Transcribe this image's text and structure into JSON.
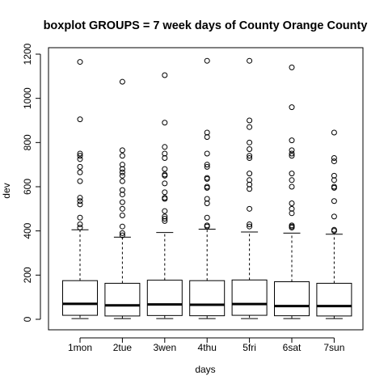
{
  "chart_data": {
    "type": "boxplot",
    "title": "boxplot GROUPS = 7 week days of County Orange County",
    "xlabel": "days",
    "ylabel": "dev",
    "ylim": [
      0,
      1200
    ],
    "yticks": [
      0,
      200,
      400,
      600,
      800,
      1000,
      1200
    ],
    "grid": false,
    "colors": {
      "box_fill": "#ffffff",
      "stroke": "#000000"
    },
    "categories": [
      "1mon",
      "2tue",
      "3wen",
      "4thu",
      "5fri",
      "6sat",
      "7sun"
    ],
    "boxes": [
      {
        "name": "1mon",
        "whisker_low": 3,
        "q1": 18,
        "median": 70,
        "q3": 175,
        "whisker_high": 405,
        "outliers": [
          1165,
          905,
          750,
          740,
          725,
          690,
          665,
          625,
          550,
          535,
          520,
          460,
          430,
          415
        ]
      },
      {
        "name": "2tue",
        "whisker_low": 3,
        "q1": 15,
        "median": 63,
        "q3": 163,
        "whisker_high": 372,
        "outliers": [
          1075,
          765,
          740,
          700,
          680,
          665,
          650,
          625,
          585,
          565,
          530,
          500,
          470,
          420,
          390,
          380
        ]
      },
      {
        "name": "3wen",
        "whisker_low": 3,
        "q1": 17,
        "median": 67,
        "q3": 177,
        "whisker_high": 393,
        "outliers": [
          1105,
          890,
          780,
          750,
          730,
          680,
          655,
          650,
          615,
          575,
          550,
          545,
          490,
          465,
          455,
          445
        ]
      },
      {
        "name": "4thu",
        "whisker_low": 3,
        "q1": 16,
        "median": 66,
        "q3": 175,
        "whisker_high": 408,
        "outliers": [
          1170,
          845,
          825,
          750,
          700,
          690,
          640,
          635,
          600,
          595,
          545,
          525,
          460,
          425,
          420
        ]
      },
      {
        "name": "5fri",
        "whisker_low": 3,
        "q1": 18,
        "median": 69,
        "q3": 178,
        "whisker_high": 395,
        "outliers": [
          1170,
          900,
          870,
          800,
          770,
          740,
          730,
          660,
          630,
          610,
          590,
          500,
          430,
          420
        ]
      },
      {
        "name": "6sat",
        "whisker_low": 3,
        "q1": 16,
        "median": 60,
        "q3": 170,
        "whisker_high": 390,
        "outliers": [
          1140,
          960,
          810,
          765,
          750,
          740,
          660,
          630,
          600,
          525,
          500,
          480,
          425,
          420,
          415
        ]
      },
      {
        "name": "7sun",
        "whisker_low": 3,
        "q1": 15,
        "median": 60,
        "q3": 163,
        "whisker_high": 385,
        "outliers": [
          845,
          730,
          715,
          650,
          630,
          600,
          595,
          535,
          465,
          405,
          400
        ]
      }
    ]
  }
}
